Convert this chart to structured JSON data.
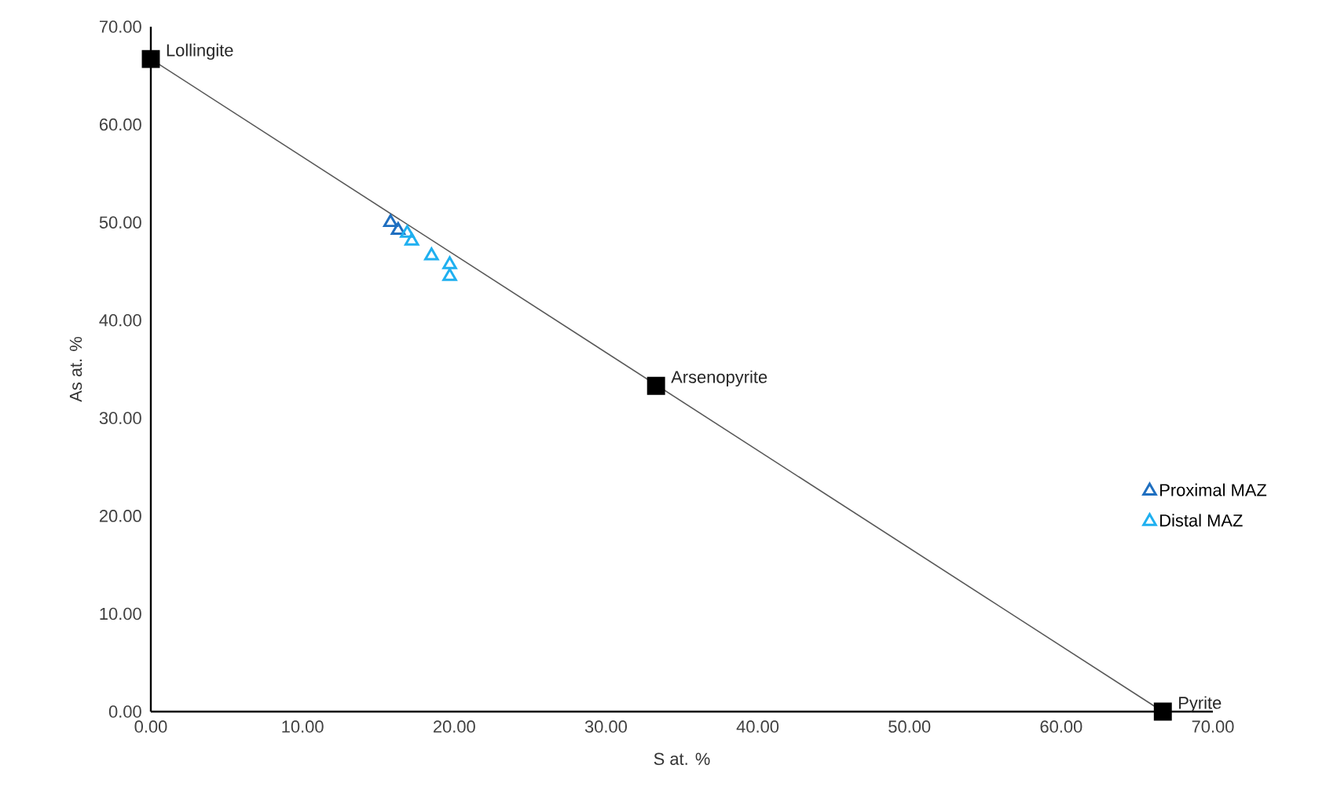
{
  "chart_data": {
    "type": "scatter",
    "xlabel": "S at. %",
    "ylabel": "As at. %",
    "xlim": [
      0,
      70
    ],
    "ylim": [
      0,
      70
    ],
    "xticks": [
      {
        "value": 0,
        "label": "0.00"
      },
      {
        "value": 10,
        "label": "10.00"
      },
      {
        "value": 20,
        "label": "20.00"
      },
      {
        "value": 30,
        "label": "30.00"
      },
      {
        "value": 40,
        "label": "40.00"
      },
      {
        "value": 50,
        "label": "50.00"
      },
      {
        "value": 60,
        "label": "60.00"
      },
      {
        "value": 70,
        "label": "70.00"
      }
    ],
    "yticks": [
      {
        "value": 0,
        "label": "0.00"
      },
      {
        "value": 10,
        "label": "10.00"
      },
      {
        "value": 20,
        "label": "20.00"
      },
      {
        "value": 30,
        "label": "30.00"
      },
      {
        "value": 40,
        "label": "40.00"
      },
      {
        "value": 50,
        "label": "50.00"
      },
      {
        "value": 60,
        "label": "60.00"
      },
      {
        "value": 70,
        "label": "70.00"
      }
    ],
    "grid": false,
    "legend": "right",
    "series": [
      {
        "type": "line",
        "color": "#595959",
        "marker": "none",
        "x": [
          0,
          66.7
        ],
        "values": [
          66.7,
          0
        ]
      },
      {
        "color": "#000000",
        "marker": "square",
        "x": [
          0,
          33.3,
          66.7
        ],
        "values": [
          66.7,
          33.3,
          0
        ]
      },
      {
        "name": "Proximal MAZ",
        "color": "#1f6fc0",
        "marker": "triangle",
        "x": [
          15.8,
          16.3
        ],
        "values": [
          50.0,
          49.2
        ]
      },
      {
        "name": "Distal MAZ",
        "color": "#1fb0f0",
        "marker": "triangle",
        "x": [
          16.9,
          17.2,
          18.5,
          19.7,
          19.7
        ],
        "values": [
          48.9,
          48.1,
          46.6,
          45.7,
          44.5
        ]
      }
    ],
    "annotations": [
      {
        "text": "Lollingite",
        "x": 0,
        "y": 66.7
      },
      {
        "text": "Arsenopyrite",
        "x": 33.3,
        "y": 33.3
      },
      {
        "text": "Pyrite",
        "x": 66.7,
        "y": 0
      }
    ]
  }
}
